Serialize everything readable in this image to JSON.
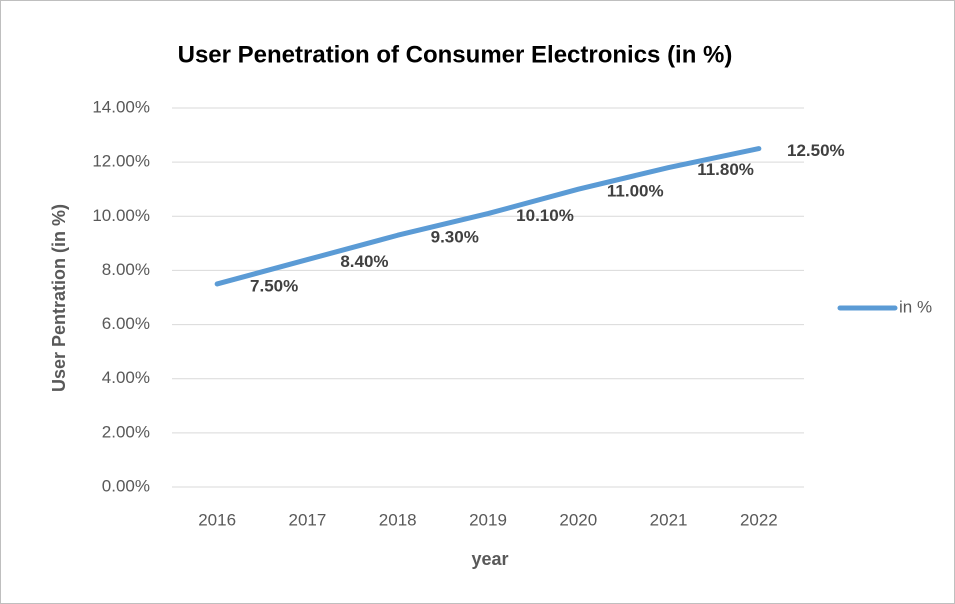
{
  "chart_data": {
    "type": "line",
    "title": "User Penetration of Consumer Electronics (in %)",
    "x_label": "year",
    "y_label": "User Pentration (in %)",
    "categories": [
      "2016",
      "2017",
      "2018",
      "2019",
      "2020",
      "2021",
      "2022"
    ],
    "series": [
      {
        "name": "in %",
        "color": "#5b9bd5",
        "values": [
          7.5,
          8.4,
          9.3,
          10.1,
          11.0,
          11.8,
          12.5
        ],
        "value_labels": [
          "7.50%",
          "8.40%",
          "9.30%",
          "10.10%",
          "11.00%",
          "11.80%",
          "12.50%"
        ]
      }
    ],
    "ylim": [
      0,
      14
    ],
    "yticks": [
      {
        "value": 0,
        "label": "0.00%"
      },
      {
        "value": 2,
        "label": "2.00%"
      },
      {
        "value": 4,
        "label": "4.00%"
      },
      {
        "value": 6,
        "label": "6.00%"
      },
      {
        "value": 8,
        "label": "8.00%"
      },
      {
        "value": 10,
        "label": "10.00%"
      },
      {
        "value": 12,
        "label": "12.00%"
      },
      {
        "value": 14,
        "label": "14.00%"
      }
    ],
    "grid": true,
    "legend": "right"
  }
}
